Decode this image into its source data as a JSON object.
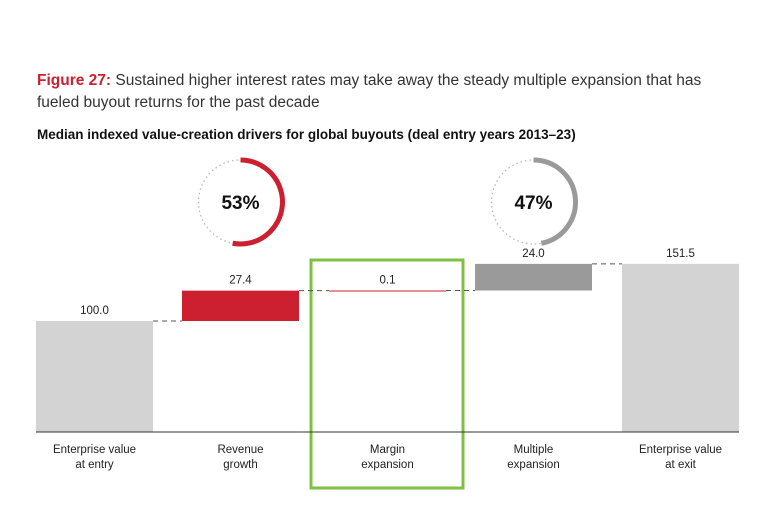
{
  "figure": {
    "label": "Figure 27:",
    "text": " Sustained higher interest rates may take away the steady multiple expansion that has fueled buyout returns for the past decade"
  },
  "subtitle": "Median indexed value-creation drivers for global buyouts (deal entry years 2013–23)",
  "chart_data": {
    "type": "waterfall",
    "categories": [
      [
        "Enterprise value",
        "at entry"
      ],
      [
        "Revenue",
        "growth"
      ],
      [
        "Margin",
        "expansion"
      ],
      [
        "Multiple",
        "expansion"
      ],
      [
        "Enterprise value",
        "at exit"
      ]
    ],
    "steps": [
      {
        "label": "100.0",
        "value": 100.0,
        "kind": "total",
        "color": "#d3d3d3"
      },
      {
        "label": "27.4",
        "value": 27.4,
        "kind": "delta",
        "color": "#cc1f2f"
      },
      {
        "label": "0.1",
        "value": 0.1,
        "kind": "delta",
        "color": "#cc1f2f"
      },
      {
        "label": "24.0",
        "value": 24.0,
        "kind": "delta",
        "color": "#9a9a9a"
      },
      {
        "label": "151.5",
        "value": 151.5,
        "kind": "total",
        "color": "#d3d3d3"
      }
    ],
    "ylim": [
      0,
      155
    ],
    "gauges": [
      {
        "text": "53%",
        "value": 53,
        "color": "#cc1f2f",
        "center_step": 1
      },
      {
        "text": "47%",
        "value": 47,
        "color": "#9a9a9a",
        "center_step": 3
      }
    ],
    "highlight": {
      "step": 2,
      "color": "#7dc142"
    }
  }
}
